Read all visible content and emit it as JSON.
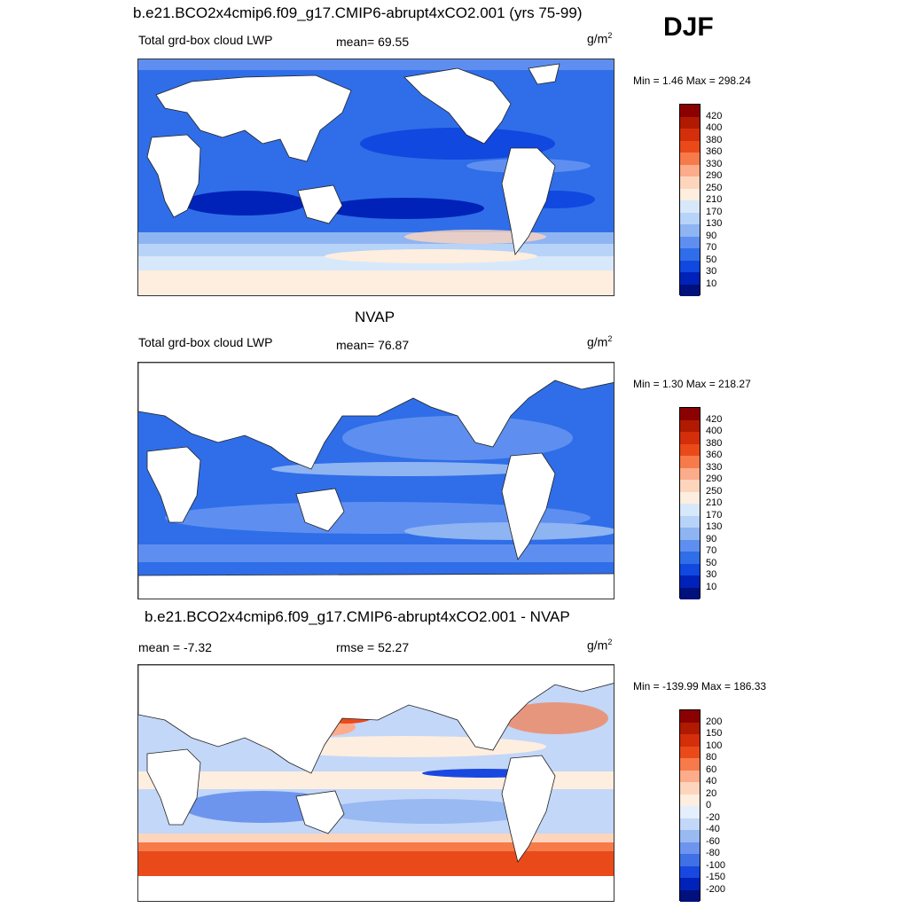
{
  "season": "DJF",
  "panels": [
    {
      "title": "b.e21.BCO2x4cmip6.f09_g17.CMIP6-abrupt4xCO2.001 (yrs 75-99)",
      "left_label": "Total grd-box cloud LWP",
      "center_label": "mean=  69.55",
      "units": "g/m",
      "units_exp": "2",
      "minmax": "Min =   1.46 Max = 298.24",
      "colorbar": "abs"
    },
    {
      "title": "NVAP",
      "left_label": "Total grd-box cloud LWP",
      "center_label": "mean=  76.87",
      "units": "g/m",
      "units_exp": "2",
      "minmax": "Min =   1.30 Max = 218.27",
      "colorbar": "abs"
    },
    {
      "title": "b.e21.BCO2x4cmip6.f09_g17.CMIP6-abrupt4xCO2.001 - NVAP",
      "left_label": "mean =  -7.32",
      "center_label": "rmse =  52.27",
      "units": "g/m",
      "units_exp": "2",
      "minmax": "Min = -139.99 Max = 186.33",
      "colorbar": "diff"
    }
  ],
  "colorbars": {
    "abs": {
      "labels": [
        "420",
        "400",
        "380",
        "360",
        "330",
        "290",
        "250",
        "210",
        "170",
        "130",
        "90",
        "70",
        "50",
        "30",
        "10"
      ],
      "colors": [
        "#8b0000",
        "#b01a00",
        "#d42e0a",
        "#ea4a1a",
        "#f77a4a",
        "#fcac8a",
        "#fdd5bd",
        "#fdeedf",
        "#d8e8fb",
        "#b7d3f8",
        "#8fb4f2",
        "#5e8ff0",
        "#2f6ee8",
        "#1048e0",
        "#0022b8",
        "#00107c"
      ]
    },
    "diff": {
      "labels": [
        "200",
        "150",
        "100",
        "80",
        "60",
        "40",
        "20",
        "0",
        "-20",
        "-40",
        "-60",
        "-80",
        "-100",
        "-150",
        "-200"
      ],
      "colors": [
        "#8b0000",
        "#b01a00",
        "#d42e0a",
        "#ea4a1a",
        "#f77a4a",
        "#fcac8a",
        "#fdd5bd",
        "#fdeedf",
        "#e4eefc",
        "#c3d7f8",
        "#98b9f2",
        "#6e95ee",
        "#3f70e6",
        "#1848e0",
        "#0022b8",
        "#00107c"
      ]
    }
  }
}
